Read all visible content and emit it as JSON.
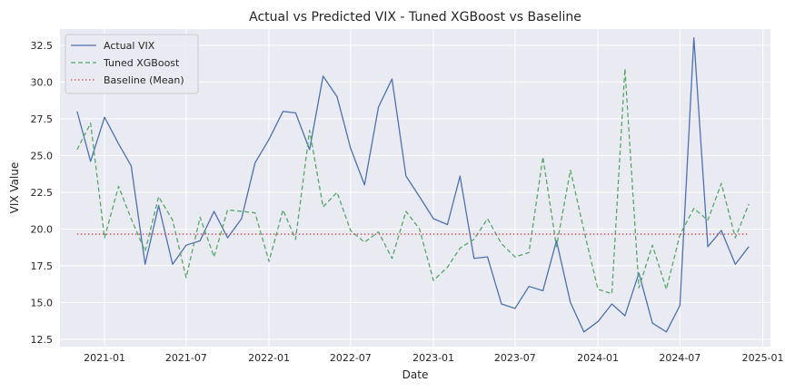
{
  "chart_data": {
    "type": "line",
    "title": "Actual vs Predicted VIX - Tuned XGBoost vs Baseline",
    "xlabel": "Date",
    "ylabel": "VIX Value",
    "x_dates": [
      "2020-11-01",
      "2020-12-01",
      "2021-01-01",
      "2021-02-01",
      "2021-03-01",
      "2021-04-01",
      "2021-05-01",
      "2021-06-01",
      "2021-07-01",
      "2021-08-01",
      "2021-09-01",
      "2021-10-01",
      "2021-11-01",
      "2021-12-01",
      "2022-01-01",
      "2022-02-01",
      "2022-03-01",
      "2022-04-01",
      "2022-05-01",
      "2022-06-01",
      "2022-07-01",
      "2022-08-01",
      "2022-09-01",
      "2022-10-01",
      "2022-11-01",
      "2022-12-01",
      "2023-01-01",
      "2023-02-01",
      "2023-03-01",
      "2023-04-01",
      "2023-05-01",
      "2023-06-01",
      "2023-07-01",
      "2023-08-01",
      "2023-09-01",
      "2023-10-01",
      "2023-11-01",
      "2023-12-01",
      "2024-01-01",
      "2024-02-01",
      "2024-03-01",
      "2024-04-01",
      "2024-05-01",
      "2024-06-01",
      "2024-07-01",
      "2024-08-01",
      "2024-09-01",
      "2024-10-01",
      "2024-11-01",
      "2024-12-01"
    ],
    "series": [
      {
        "name": "Actual VIX",
        "color": "#4c72b0",
        "style": "solid",
        "values": [
          28.0,
          24.6,
          27.6,
          25.8,
          24.3,
          17.6,
          21.6,
          17.6,
          18.9,
          19.2,
          21.2,
          19.4,
          20.7,
          24.5,
          26.1,
          28.0,
          27.9,
          25.4,
          30.4,
          29.0,
          25.5,
          23.0,
          28.3,
          30.2,
          23.6,
          22.2,
          20.7,
          20.3,
          23.6,
          18.0,
          18.1,
          14.9,
          14.6,
          16.1,
          15.8,
          19.2,
          15.0,
          13.0,
          13.7,
          14.9,
          14.1,
          17.0,
          13.6,
          13.0,
          14.8,
          33.0,
          18.8,
          19.9,
          17.6,
          18.8
        ]
      },
      {
        "name": "Tuned XGBoost",
        "color": "#55a868",
        "style": "dashed",
        "values": [
          25.4,
          27.2,
          19.4,
          22.9,
          20.7,
          18.5,
          22.2,
          20.6,
          16.7,
          20.8,
          18.1,
          21.3,
          21.2,
          21.1,
          17.8,
          21.3,
          19.3,
          26.7,
          21.5,
          22.5,
          19.9,
          19.1,
          19.8,
          18.0,
          21.2,
          20.0,
          16.5,
          17.4,
          18.7,
          19.3,
          20.7,
          19.0,
          18.1,
          18.4,
          24.9,
          18.8,
          24.0,
          19.9,
          15.9,
          15.6,
          30.9,
          16.0,
          18.9,
          15.9,
          19.6,
          21.4,
          20.6,
          23.1,
          19.4,
          21.7
        ]
      },
      {
        "name": "Baseline (Mean)",
        "color": "#c44e52",
        "style": "dotted",
        "values": [
          19.65,
          19.65
        ]
      }
    ],
    "x_ticks": [
      "2021-01",
      "2021-07",
      "2022-01",
      "2022-07",
      "2023-01",
      "2023-07",
      "2024-01",
      "2024-07",
      "2025-01"
    ],
    "y_ticks": [
      "12.5",
      "15.0",
      "17.5",
      "20.0",
      "22.5",
      "25.0",
      "27.5",
      "30.0",
      "32.5"
    ],
    "ylim": [
      12.0,
      33.6
    ],
    "xlim": [
      "2020-09-24",
      "2025-01-18"
    ],
    "grid": true,
    "legend": "top-left"
  }
}
